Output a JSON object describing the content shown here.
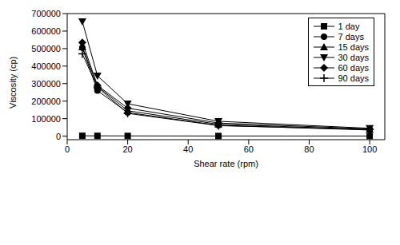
{
  "chart_data": {
    "type": "line",
    "x_label": "Shear rate (rpm)",
    "y_label": "Viscosity (cp)",
    "x": [
      5,
      10,
      20,
      50,
      100
    ],
    "xlim": [
      0,
      105
    ],
    "xticks": [
      0,
      20,
      40,
      60,
      80,
      100
    ],
    "ylim": [
      -20000,
      700000
    ],
    "yticks": [
      0,
      100000,
      200000,
      300000,
      400000,
      500000,
      600000,
      700000
    ],
    "grid": false,
    "legend": "upper right",
    "series": [
      {
        "name": "1 day",
        "color": "#000000",
        "marker": "square",
        "values": [
          2000,
          1800,
          1500,
          1000,
          800
        ]
      },
      {
        "name": "7 days",
        "color": "#000000",
        "marker": "circle",
        "values": [
          505000,
          260000,
          135000,
          62000,
          35000
        ]
      },
      {
        "name": "15 days",
        "color": "#000000",
        "marker": "triangle",
        "values": [
          510000,
          285000,
          145000,
          68000,
          38000
        ]
      },
      {
        "name": "30 days",
        "color": "#000000",
        "marker": "triangle-down",
        "values": [
          655000,
          345000,
          185000,
          85000,
          45000
        ]
      },
      {
        "name": "60 days",
        "color": "#000000",
        "marker": "diamond",
        "values": [
          535000,
          290000,
          160000,
          75000,
          42000
        ]
      },
      {
        "name": "90 days",
        "color": "#000000",
        "marker": "plus",
        "values": [
          470000,
          280000,
          130000,
          60000,
          38000
        ]
      }
    ]
  }
}
